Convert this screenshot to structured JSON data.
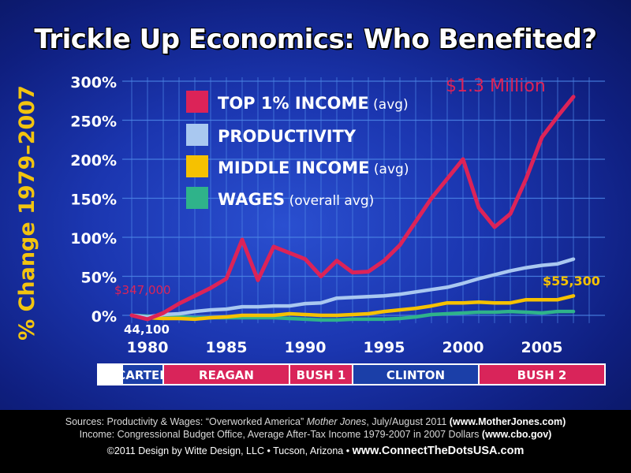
{
  "title": "Trickle Up Economics: Who Benefited?",
  "y_axis_label": "% Change 1979–2007",
  "colors": {
    "top1": "#dc2358",
    "productivity": "#a9c8f0",
    "middle": "#f6c100",
    "wages": "#2fb38a",
    "president_red": "#d9245a",
    "president_blue": "#1b3fa8"
  },
  "annotations": {
    "top_value": "$1.3 Million",
    "top_start": "$347,000",
    "middle_start": "44,100",
    "middle_end": "$55,300"
  },
  "presidents": [
    {
      "name": "CARTER",
      "from": 1978.4,
      "to": 1981,
      "color": "blue"
    },
    {
      "name": "REAGAN",
      "from": 1981,
      "to": 1989,
      "color": "red"
    },
    {
      "name": "BUSH 1",
      "from": 1989,
      "to": 1993,
      "color": "red"
    },
    {
      "name": "CLINTON",
      "from": 1993,
      "to": 2001,
      "color": "blue"
    },
    {
      "name": "BUSH 2",
      "from": 2001,
      "to": 2009,
      "color": "red"
    }
  ],
  "footer": {
    "sources_prefix": "Sources: Productivity & Wages: “Overworked America” ",
    "sources_pub": "Mother Jones",
    "sources_date": ", July/August 2011 ",
    "sources_url": "(www.MotherJones.com)",
    "income_line": "Income: Congressional Budget Office, Average After-Tax Income 1979-2007 in 2007 Dollars ",
    "income_url": "(www.cbo.gov)",
    "credit": "©2011 Design by Witte Design, LLC • Tucson, Arizona • ",
    "site": "www.ConnectTheDotsUSA.com"
  },
  "chart_data": {
    "type": "line",
    "title": "Trickle Up Economics: Who Benefited?",
    "xlabel": "",
    "ylabel": "% Change 1979–2007",
    "xlim": [
      1978.4,
      2009
    ],
    "ylim": [
      -10,
      305
    ],
    "grid": true,
    "xticks": [
      1980,
      1985,
      1990,
      1995,
      2000,
      2005
    ],
    "yticks": [
      0,
      50,
      100,
      150,
      200,
      250,
      300
    ],
    "ytick_labels": [
      "0%",
      "50%",
      "100%",
      "150%",
      "200%",
      "250%",
      "300%"
    ],
    "legend": [
      {
        "key": "top1",
        "label": "TOP 1% INCOME",
        "suffix": "(avg)"
      },
      {
        "key": "productivity",
        "label": "PRODUCTIVITY",
        "suffix": ""
      },
      {
        "key": "middle",
        "label": "MIDDLE INCOME",
        "suffix": "(avg)"
      },
      {
        "key": "wages",
        "label": "WAGES",
        "suffix": "(overall avg)"
      }
    ],
    "x": [
      1979,
      1980,
      1981,
      1982,
      1983,
      1984,
      1985,
      1986,
      1987,
      1988,
      1989,
      1990,
      1991,
      1992,
      1993,
      1994,
      1995,
      1996,
      1997,
      1998,
      1999,
      2000,
      2001,
      2002,
      2003,
      2004,
      2005,
      2006,
      2007
    ],
    "series": [
      {
        "key": "top1",
        "name": "TOP 1% INCOME (avg)",
        "values": [
          0,
          -5,
          3,
          15,
          25,
          35,
          47,
          97,
          45,
          88,
          80,
          72,
          50,
          70,
          55,
          56,
          70,
          90,
          120,
          150,
          175,
          200,
          138,
          113,
          130,
          175,
          228,
          255,
          280
        ]
      },
      {
        "key": "productivity",
        "name": "PRODUCTIVITY",
        "values": [
          0,
          -2,
          1,
          2,
          5,
          7,
          8,
          11,
          11,
          12,
          12,
          15,
          16,
          22,
          23,
          24,
          25,
          27,
          30,
          33,
          36,
          41,
          47,
          52,
          57,
          61,
          64,
          66,
          72
        ]
      },
      {
        "key": "middle",
        "name": "MIDDLE INCOME (avg)",
        "values": [
          0,
          -3,
          -4,
          -4,
          -5,
          -3,
          -2,
          0,
          0,
          0,
          2,
          1,
          0,
          0,
          1,
          2,
          5,
          7,
          9,
          12,
          16,
          16,
          17,
          16,
          16,
          20,
          20,
          20,
          25
        ]
      },
      {
        "key": "wages",
        "name": "WAGES (overall avg)",
        "values": [
          0,
          -1,
          -2,
          -2,
          -3,
          -3,
          -3,
          -3,
          -3,
          -3,
          -4,
          -5,
          -6,
          -6,
          -5,
          -5,
          -5,
          -4,
          -2,
          1,
          2,
          3,
          4,
          4,
          5,
          4,
          3,
          5,
          5
        ]
      }
    ]
  }
}
